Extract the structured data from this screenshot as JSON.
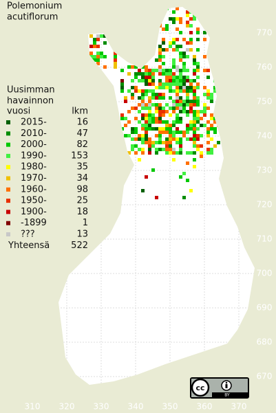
{
  "title": [
    "Polemonium",
    "acutiflorum"
  ],
  "legend": {
    "header": [
      "Uusimman",
      "havainnon",
      "vuosi"
    ],
    "count_header": "lkm",
    "items": [
      {
        "label": "2015-",
        "count": 16,
        "color": "#006000"
      },
      {
        "label": "2010-",
        "count": 47,
        "color": "#008c00"
      },
      {
        "label": "2000-",
        "count": 82,
        "color": "#00c800"
      },
      {
        "label": "1990-",
        "count": 153,
        "color": "#40f040"
      },
      {
        "label": "1980-",
        "count": 35,
        "color": "#ffff00"
      },
      {
        "label": "1970-",
        "count": 34,
        "color": "#f0c000"
      },
      {
        "label": "1960-",
        "count": 98,
        "color": "#ff7000"
      },
      {
        "label": "1950-",
        "count": 25,
        "color": "#e83000"
      },
      {
        "label": "1900-",
        "count": 18,
        "color": "#c80000"
      },
      {
        "label": "-1899",
        "count": 1,
        "color": "#800000"
      },
      {
        "label": "???",
        "count": 13,
        "color": "#c8c8c8"
      }
    ],
    "total_label": "Yhteensä",
    "total": 522
  },
  "grid": {
    "x_labels": [
      310,
      320,
      330,
      340,
      350,
      360,
      370
    ],
    "y_labels": [
      770,
      760,
      750,
      740,
      730,
      720,
      710,
      700,
      690,
      680,
      670
    ]
  },
  "license": "BY"
}
